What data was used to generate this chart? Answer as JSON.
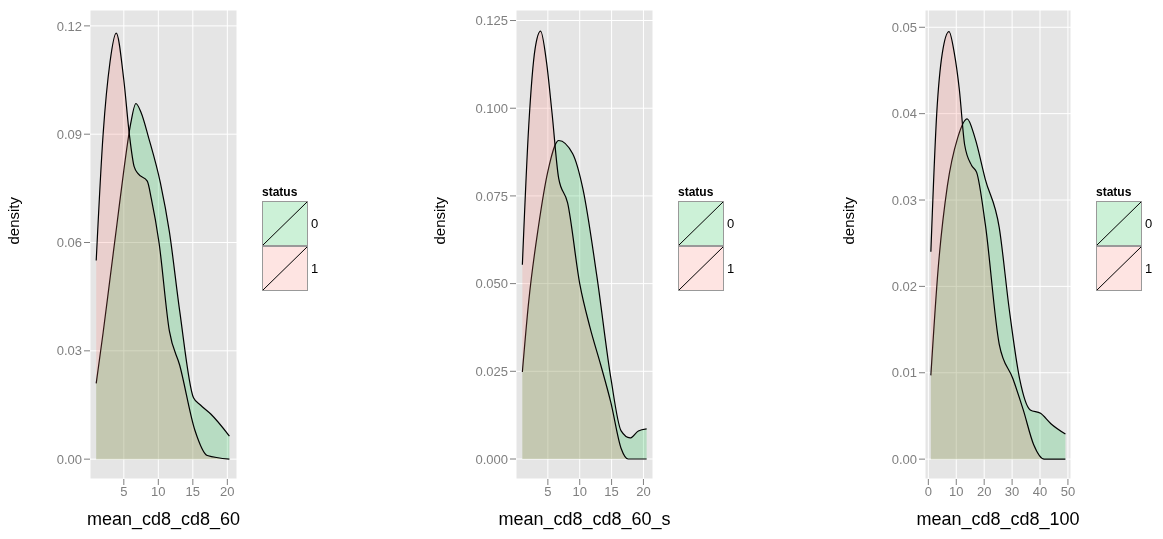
{
  "chart_data": [
    {
      "type": "area",
      "xlabel": "mean_cd8_cd8_60",
      "ylabel": "density",
      "legend_title": "status",
      "legend": "right",
      "grid": true,
      "xlim": [
        0.1,
        21.4
      ],
      "ylim": [
        -0.0055,
        0.1244
      ],
      "xticks": [
        5,
        10,
        15,
        20
      ],
      "yticks": [
        {
          "value": 0,
          "label": "0.00"
        },
        {
          "value": 0.03,
          "label": "0.03"
        },
        {
          "value": 0.06,
          "label": "0.06"
        },
        {
          "value": 0.09,
          "label": "0.09"
        },
        {
          "value": 0.12,
          "label": "0.12"
        }
      ],
      "series": [
        {
          "name": "0",
          "color": "#00ba38",
          "x": [
            1,
            2,
            3,
            4,
            5,
            6,
            6.75,
            7.5,
            8.6,
            10.3,
            11.6,
            13.1,
            15.1,
            16.1,
            17.6,
            20.3
          ],
          "values": [
            0.021,
            0.035,
            0.05,
            0.065,
            0.08,
            0.093,
            0.0985,
            0.096,
            0.089,
            0.0765,
            0.063,
            0.041,
            0.017,
            0.015,
            0.0125,
            0.0064
          ]
        },
        {
          "name": "1",
          "color": "#f8766d",
          "x": [
            1,
            2,
            3,
            3.9,
            5,
            5.8,
            6.5,
            7.1,
            8.4,
            9,
            10.1,
            11.6,
            13.1,
            15.3,
            17.1,
            20.3
          ],
          "values": [
            0.055,
            0.09,
            0.11,
            0.118,
            0.105,
            0.09,
            0.081,
            0.079,
            0.077,
            0.072,
            0.06,
            0.0355,
            0.026,
            0.008,
            0.001,
            0
          ]
        }
      ]
    },
    {
      "type": "area",
      "xlabel": "mean_cd8_cd8_60_s",
      "ylabel": "density",
      "legend_title": "status",
      "legend": "right",
      "grid": true,
      "xlim": [
        0,
        21.5
      ],
      "ylim": [
        -0.0057,
        0.128
      ],
      "xticks": [
        5,
        10,
        15,
        20
      ],
      "yticks": [
        {
          "value": 0,
          "label": "0.000"
        },
        {
          "value": 0.025,
          "label": "0.025"
        },
        {
          "value": 0.05,
          "label": "0.050"
        },
        {
          "value": 0.075,
          "label": "0.075"
        },
        {
          "value": 0.1,
          "label": "0.100"
        },
        {
          "value": 0.125,
          "label": "0.125"
        }
      ],
      "series": [
        {
          "name": "0",
          "color": "#00ba38",
          "x": [
            1,
            2,
            3.5,
            5,
            6.7,
            8.9,
            10.5,
            12.7,
            14.9,
            16.5,
            17.9,
            19.2,
            20.5
          ],
          "values": [
            0.0248,
            0.045,
            0.066,
            0.082,
            0.0908,
            0.087,
            0.077,
            0.052,
            0.0229,
            0.008,
            0.006,
            0.008,
            0.0086
          ]
        },
        {
          "name": "1",
          "color": "#f8766d",
          "x": [
            1,
            2,
            3,
            3.86,
            4.8,
            5.65,
            6.7,
            8.1,
            10,
            11.6,
            13.3,
            14.9,
            16.5,
            17.6,
            20.5
          ],
          "values": [
            0.0554,
            0.095,
            0.117,
            0.122,
            0.113,
            0.0987,
            0.08,
            0.073,
            0.05,
            0.0376,
            0.0268,
            0.016,
            0.003,
            0,
            0
          ]
        }
      ]
    },
    {
      "type": "area",
      "xlabel": "mean_cd8_cd8_100",
      "ylabel": "density",
      "legend_title": "status",
      "legend": "right",
      "grid": true,
      "xlim": [
        -1.2,
        51.1
      ],
      "ylim": [
        -0.0023,
        0.052
      ],
      "xticks": [
        0,
        10,
        20,
        30,
        40,
        50
      ],
      "yticks": [
        {
          "value": 0,
          "label": "0.00"
        },
        {
          "value": 0.01,
          "label": "0.01"
        },
        {
          "value": 0.02,
          "label": "0.02"
        },
        {
          "value": 0.03,
          "label": "0.03"
        },
        {
          "value": 0.04,
          "label": "0.04"
        },
        {
          "value": 0.05,
          "label": "0.05"
        }
      ],
      "series": [
        {
          "name": "0",
          "color": "#00ba38",
          "x": [
            0.9,
            3.5,
            6.8,
            10.5,
            13.9,
            16.7,
            20.4,
            25.4,
            29,
            32.7,
            36.5,
            40.2,
            43.9,
            49.1
          ],
          "values": [
            0.0097,
            0.022,
            0.0316,
            0.0372,
            0.0394,
            0.0372,
            0.0324,
            0.0268,
            0.0173,
            0.0093,
            0.0057,
            0.0053,
            0.0041,
            0.0029
          ]
        },
        {
          "name": "1",
          "color": "#f8766d",
          "x": [
            0.9,
            3,
            5,
            7.4,
            9.3,
            11.1,
            13,
            15.5,
            17.3,
            20.4,
            25.4,
            30.3,
            34,
            37.7,
            41.5,
            49.1
          ],
          "values": [
            0.024,
            0.04,
            0.047,
            0.0495,
            0.047,
            0.0428,
            0.0364,
            0.034,
            0.0332,
            0.0272,
            0.0133,
            0.0093,
            0.0057,
            0.0017,
            0,
            0
          ]
        }
      ]
    }
  ]
}
